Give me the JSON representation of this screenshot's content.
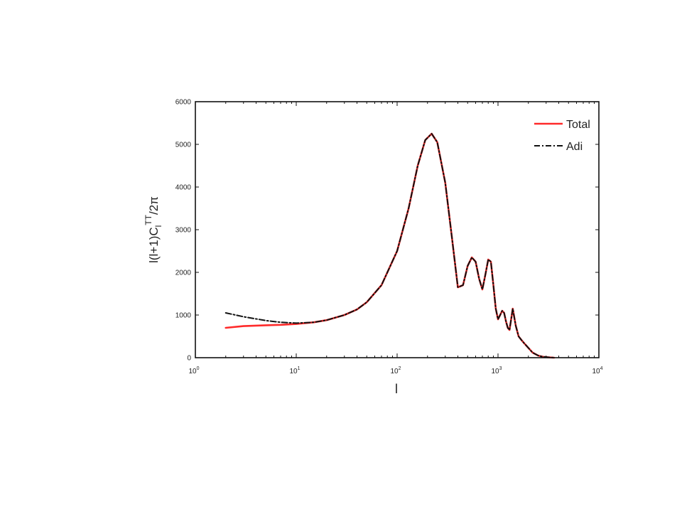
{
  "chart_data": {
    "type": "line",
    "title": "",
    "xlabel": "l",
    "ylabel": "l(l+1)C",
    "ylabel_sub": "l",
    "ylabel_sup": "TT",
    "ylabel_tail": "/2π",
    "xscale": "log",
    "xlim": [
      1,
      10000
    ],
    "ylim": [
      0,
      6000
    ],
    "xticks": [
      {
        "value": 1,
        "base": "10",
        "exp": "0"
      },
      {
        "value": 10,
        "base": "10",
        "exp": "1"
      },
      {
        "value": 100,
        "base": "10",
        "exp": "2"
      },
      {
        "value": 1000,
        "base": "10",
        "exp": "3"
      },
      {
        "value": 10000,
        "base": "10",
        "exp": "4"
      }
    ],
    "yticks": [
      "0",
      "1000",
      "2000",
      "3000",
      "4000",
      "5000",
      "6000"
    ],
    "grid": false,
    "legend_position": "top-right",
    "series": [
      {
        "name": "Total",
        "color": "#ff2a2a",
        "style": "solid",
        "x": [
          2,
          3,
          5,
          7,
          10,
          15,
          20,
          30,
          40,
          50,
          70,
          100,
          130,
          160,
          190,
          220,
          250,
          300,
          350,
          400,
          450,
          500,
          550,
          600,
          650,
          700,
          750,
          800,
          850,
          900,
          950,
          1000,
          1050,
          1100,
          1150,
          1200,
          1250,
          1300,
          1350,
          1400,
          1500,
          1600,
          1700,
          1800,
          2000,
          2200,
          2500,
          2800,
          3200,
          3600
        ],
        "y": [
          700,
          740,
          760,
          770,
          790,
          830,
          880,
          1000,
          1130,
          1300,
          1700,
          2500,
          3500,
          4500,
          5100,
          5250,
          5050,
          4100,
          2800,
          1650,
          1700,
          2150,
          2350,
          2250,
          1850,
          1600,
          1950,
          2300,
          2250,
          1700,
          1150,
          900,
          1000,
          1100,
          1050,
          850,
          700,
          650,
          900,
          1150,
          750,
          500,
          420,
          350,
          230,
          120,
          50,
          20,
          8,
          0
        ]
      },
      {
        "name": "Adi",
        "color": "#111111",
        "style": "dashdot",
        "x": [
          2,
          3,
          5,
          7,
          10,
          15,
          20,
          30,
          40,
          50,
          70,
          100,
          130,
          160,
          190,
          220,
          250,
          300,
          350,
          400,
          450,
          500,
          550,
          600,
          650,
          700,
          750,
          800,
          850,
          900,
          950,
          1000,
          1050,
          1100,
          1150,
          1200,
          1250,
          1300,
          1350,
          1400,
          1500,
          1600,
          1700,
          1800,
          2000,
          2200,
          2500,
          2800,
          3200,
          3600
        ],
        "y": [
          1050,
          960,
          870,
          830,
          810,
          830,
          880,
          1000,
          1130,
          1300,
          1700,
          2500,
          3500,
          4500,
          5100,
          5250,
          5050,
          4100,
          2800,
          1650,
          1700,
          2150,
          2350,
          2250,
          1850,
          1600,
          1950,
          2300,
          2250,
          1700,
          1150,
          900,
          1000,
          1100,
          1050,
          850,
          700,
          650,
          900,
          1150,
          750,
          500,
          420,
          350,
          230,
          120,
          50,
          20,
          8,
          0
        ]
      }
    ]
  }
}
